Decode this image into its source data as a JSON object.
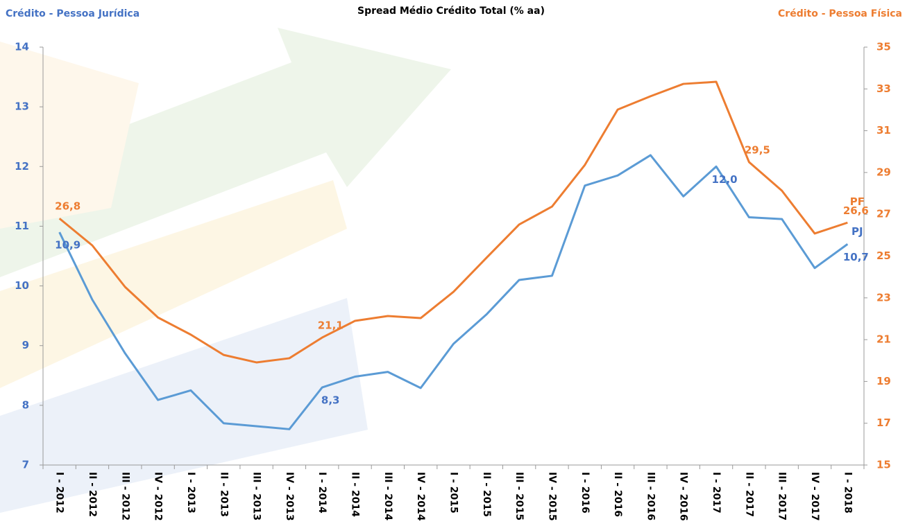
{
  "chart_data": {
    "type": "line",
    "title": "Spread Médio Crédito Total (% aa)",
    "y_label": "Crédito - Pessoa Jurídica",
    "y2_label": "Crédito - Pessoa Física",
    "categories": [
      "I - 2012",
      "II - 2012",
      "III - 2012",
      "IV - 2012",
      "I - 2013",
      "II - 2013",
      "III - 2013",
      "IV - 2013",
      "I - 2014",
      "II - 2014",
      "III - 2014",
      "IV - 2014",
      "I - 2015",
      "II - 2015",
      "III - 2015",
      "IV - 2015",
      "I - 2016",
      "II - 2016",
      "III - 2016",
      "IV - 2016",
      "I - 2017",
      "II - 2017",
      "III - 2017",
      "IV - 2017",
      "I - 2018"
    ],
    "ylim": [
      7,
      14
    ],
    "yticks": [
      7,
      8,
      9,
      10,
      11,
      12,
      13,
      14
    ],
    "y2lim": [
      15,
      35
    ],
    "y2ticks": [
      15,
      17,
      19,
      21,
      23,
      25,
      27,
      29,
      31,
      33,
      35
    ],
    "grid": false,
    "series": [
      {
        "name": "PJ",
        "color": "#5b9bd5",
        "label_color": "#4472c4",
        "values": [
          10.9,
          9.77,
          8.87,
          8.09,
          8.25,
          7.7,
          7.65,
          7.6,
          8.3,
          8.48,
          8.56,
          8.29,
          9.03,
          9.52,
          10.1,
          10.17,
          11.68,
          11.85,
          12.19,
          11.5,
          12.0,
          11.15,
          11.12,
          10.3,
          10.7
        ],
        "value_labels": [
          "10,9",
          null,
          null,
          null,
          null,
          null,
          null,
          null,
          "8,3",
          null,
          null,
          null,
          null,
          null,
          null,
          null,
          null,
          null,
          null,
          null,
          "12,0",
          null,
          null,
          null,
          "10,7"
        ]
      },
      {
        "name": "PF",
        "color": "#ed7d31",
        "label_color": "#ed7d31",
        "axis": "y2",
        "values": [
          26.8,
          25.51,
          23.52,
          22.06,
          21.24,
          20.27,
          19.91,
          20.11,
          21.1,
          21.9,
          22.13,
          22.03,
          23.29,
          24.91,
          26.51,
          27.37,
          29.36,
          32.01,
          32.65,
          33.24,
          33.34,
          29.5,
          28.13,
          26.08,
          26.6
        ],
        "value_labels": [
          "26,8",
          null,
          null,
          null,
          null,
          null,
          null,
          null,
          "21,1",
          null,
          null,
          null,
          null,
          null,
          null,
          null,
          null,
          null,
          null,
          null,
          null,
          "29,5",
          null,
          null,
          "26,6"
        ]
      }
    ]
  }
}
